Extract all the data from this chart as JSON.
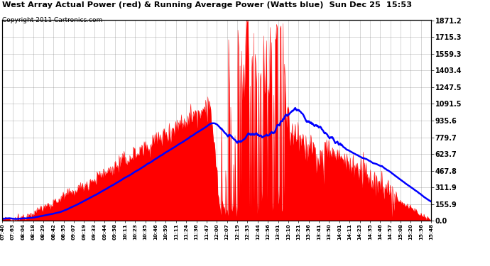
{
  "title": "West Array Actual Power (red) & Running Average Power (Watts blue)  Sun Dec 25  15:53",
  "copyright": "Copyright 2011 Cartronics.com",
  "background_color": "#ffffff",
  "plot_bg_color": "#ffffff",
  "grid_color": "#888888",
  "actual_color": "#ff0000",
  "avg_color": "#0000ff",
  "y_ticks": [
    0.0,
    155.9,
    311.9,
    467.8,
    623.7,
    779.7,
    935.6,
    1091.5,
    1247.5,
    1403.4,
    1559.3,
    1715.3,
    1871.2
  ],
  "x_labels": [
    "07:40",
    "07:63",
    "08:04",
    "08:18",
    "08:29",
    "08:42",
    "08:55",
    "09:07",
    "09:19",
    "09:33",
    "09:44",
    "09:58",
    "10:11",
    "10:23",
    "10:35",
    "10:46",
    "10:59",
    "11:11",
    "11:24",
    "11:36",
    "11:47",
    "12:00",
    "12:07",
    "12:19",
    "12:33",
    "12:44",
    "12:56",
    "13:01",
    "13:10",
    "13:21",
    "13:36",
    "13:41",
    "13:50",
    "14:01",
    "14:11",
    "14:23",
    "14:35",
    "14:46",
    "14:57",
    "15:08",
    "15:20",
    "15:36",
    "15:48"
  ],
  "ymax": 1871.2,
  "n_points": 600
}
